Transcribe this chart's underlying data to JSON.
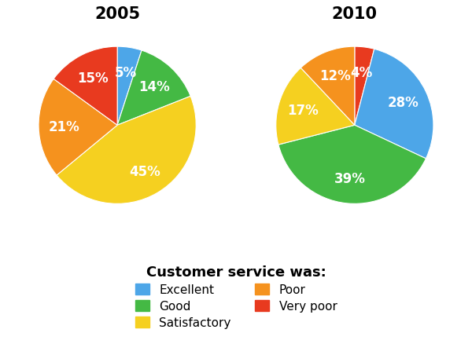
{
  "title_2005": "2005",
  "title_2010": "2010",
  "categories": [
    "Excellent",
    "Good",
    "Satisfactory",
    "Poor",
    "Very poor"
  ],
  "colors_map": {
    "Excellent": "#4da6e8",
    "Good": "#44b944",
    "Satisfactory": "#f5d020",
    "Poor": "#f5921e",
    "Very poor": "#e83a1f"
  },
  "legend_title": "Customer service was:",
  "legend_title_fontsize": 13,
  "legend_fontsize": 11,
  "title_fontsize": 15,
  "label_fontsize": 12,
  "background_color": "#ffffff",
  "wedge_2005_order": [
    "Excellent",
    "Good",
    "Satisfactory",
    "Poor",
    "Very poor"
  ],
  "wedge_2005_vals": [
    5,
    14,
    45,
    21,
    15
  ],
  "wedge_2005_startangle": 90,
  "wedge_2010_order": [
    "Very poor",
    "Excellent",
    "Good",
    "Satisfactory",
    "Poor"
  ],
  "wedge_2010_vals": [
    4,
    28,
    39,
    17,
    12
  ],
  "wedge_2010_startangle": 90
}
